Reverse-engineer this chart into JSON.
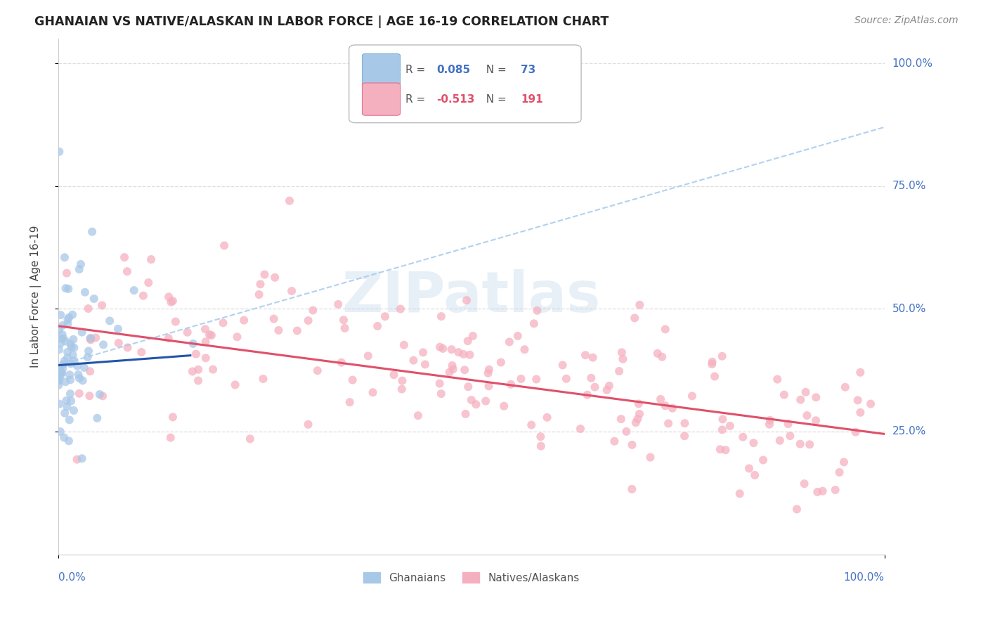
{
  "title": "GHANAIAN VS NATIVE/ALASKAN IN LABOR FORCE | AGE 16-19 CORRELATION CHART",
  "source": "Source: ZipAtlas.com",
  "ylabel": "In Labor Force | Age 16-19",
  "ytick_labels": [
    "25.0%",
    "50.0%",
    "75.0%",
    "100.0%"
  ],
  "ytick_values": [
    0.25,
    0.5,
    0.75,
    1.0
  ],
  "xlim": [
    0.0,
    1.0
  ],
  "ylim": [
    0.0,
    1.05
  ],
  "watermark": "ZIPatlas",
  "ghanaian_color": "#a8c8e8",
  "ghanaian_edge_color": "#7fb3d3",
  "ghanaian_line_color": "#2255aa",
  "native_color": "#f5b0c0",
  "native_edge_color": "#e07090",
  "native_line_color": "#e0506a",
  "dashed_line_color": "#aaccee",
  "legend_box_color": "#dddddd",
  "gh_R": "0.085",
  "gh_N": "73",
  "nat_R": "-0.513",
  "nat_N": "191",
  "title_color": "#222222",
  "source_color": "#888888",
  "tick_label_color": "#4472c4",
  "axis_color": "#cccccc",
  "grid_color": "#dddddd",
  "ylabel_color": "#444444",
  "bottom_legend_color": "#555555"
}
